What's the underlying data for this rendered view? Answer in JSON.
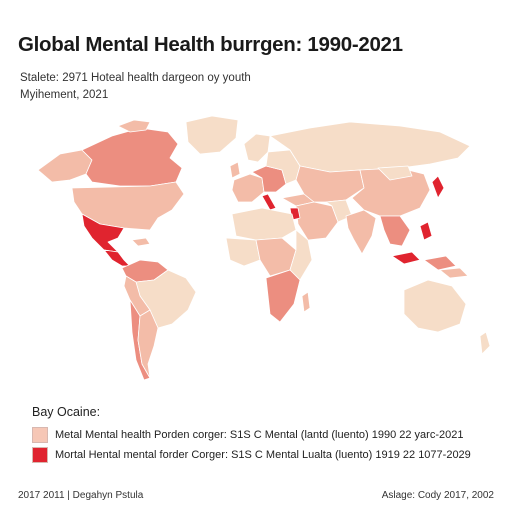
{
  "title": "Global Mental Health burrgen: 1990-2021",
  "subtitle_line1": "Stalete: 2971 Hoteal health dargeon oy youth",
  "subtitle_line2": "Myihement, 2021",
  "legend": {
    "title": "Bay Ocaine:",
    "items": [
      {
        "label": "Metal Mental health Porden corger: S1S C Mental (lantd (luento) 1990 22 yarc-2021",
        "color": "#f6c7b6"
      },
      {
        "label": "Mortal Hental mental forder Corger: S1S C Mental Lualta (luento) 1919 22 1077-2029",
        "color": "#e0242f"
      }
    ]
  },
  "footer_left": "2017 2011 | Degahyn Pstula",
  "footer_right": "Aslage: Cody 2017, 2002",
  "colors": {
    "light": "#f6ddc8",
    "medium": "#f3bca8",
    "strong": "#ec8e80",
    "high": "#e0242f",
    "border": "#ffffff"
  }
}
